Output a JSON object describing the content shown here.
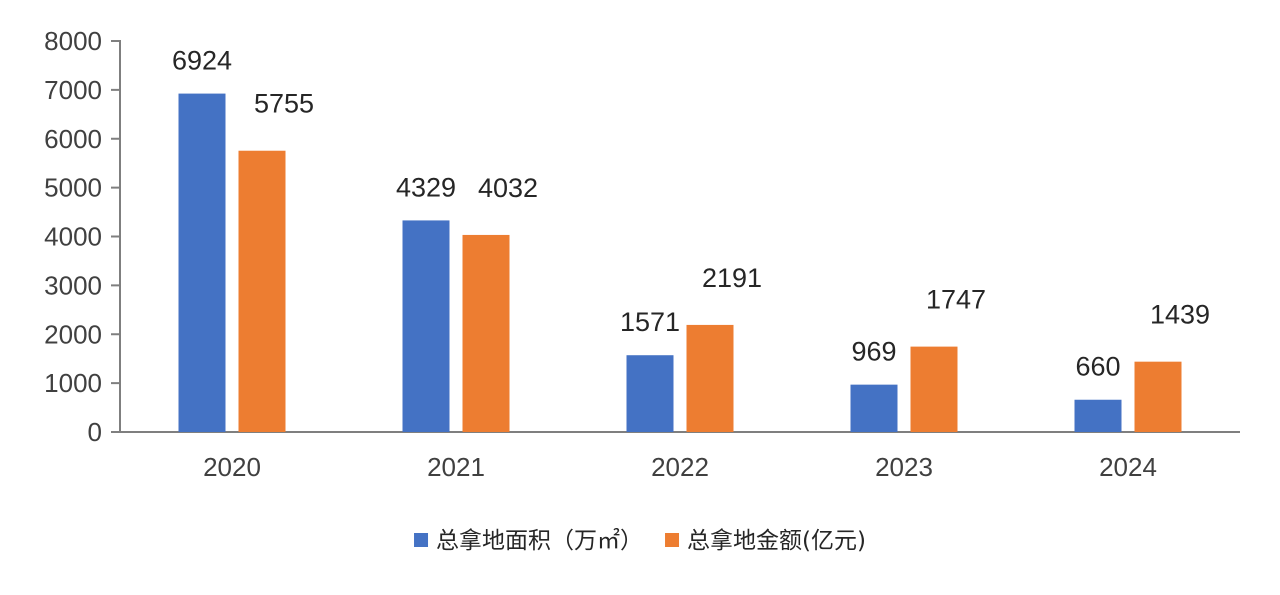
{
  "chart_data": {
    "type": "bar",
    "categories": [
      "2020",
      "2021",
      "2022",
      "2023",
      "2024"
    ],
    "series": [
      {
        "name": "总拿地面积（万㎡）",
        "values": [
          6924,
          4329,
          1571,
          969,
          660
        ],
        "color": "#4472C4"
      },
      {
        "name": "总拿地金额(亿元)",
        "values": [
          5755,
          4032,
          2191,
          1747,
          1439
        ],
        "color": "#ED7D31"
      }
    ],
    "yticks": [
      "0",
      "1000",
      "2000",
      "3000",
      "4000",
      "5000",
      "6000",
      "7000",
      "8000"
    ],
    "ylim": [
      0,
      8000
    ],
    "grid": false,
    "legend_position": "bottom",
    "title": "",
    "xlabel": "",
    "ylabel": ""
  }
}
